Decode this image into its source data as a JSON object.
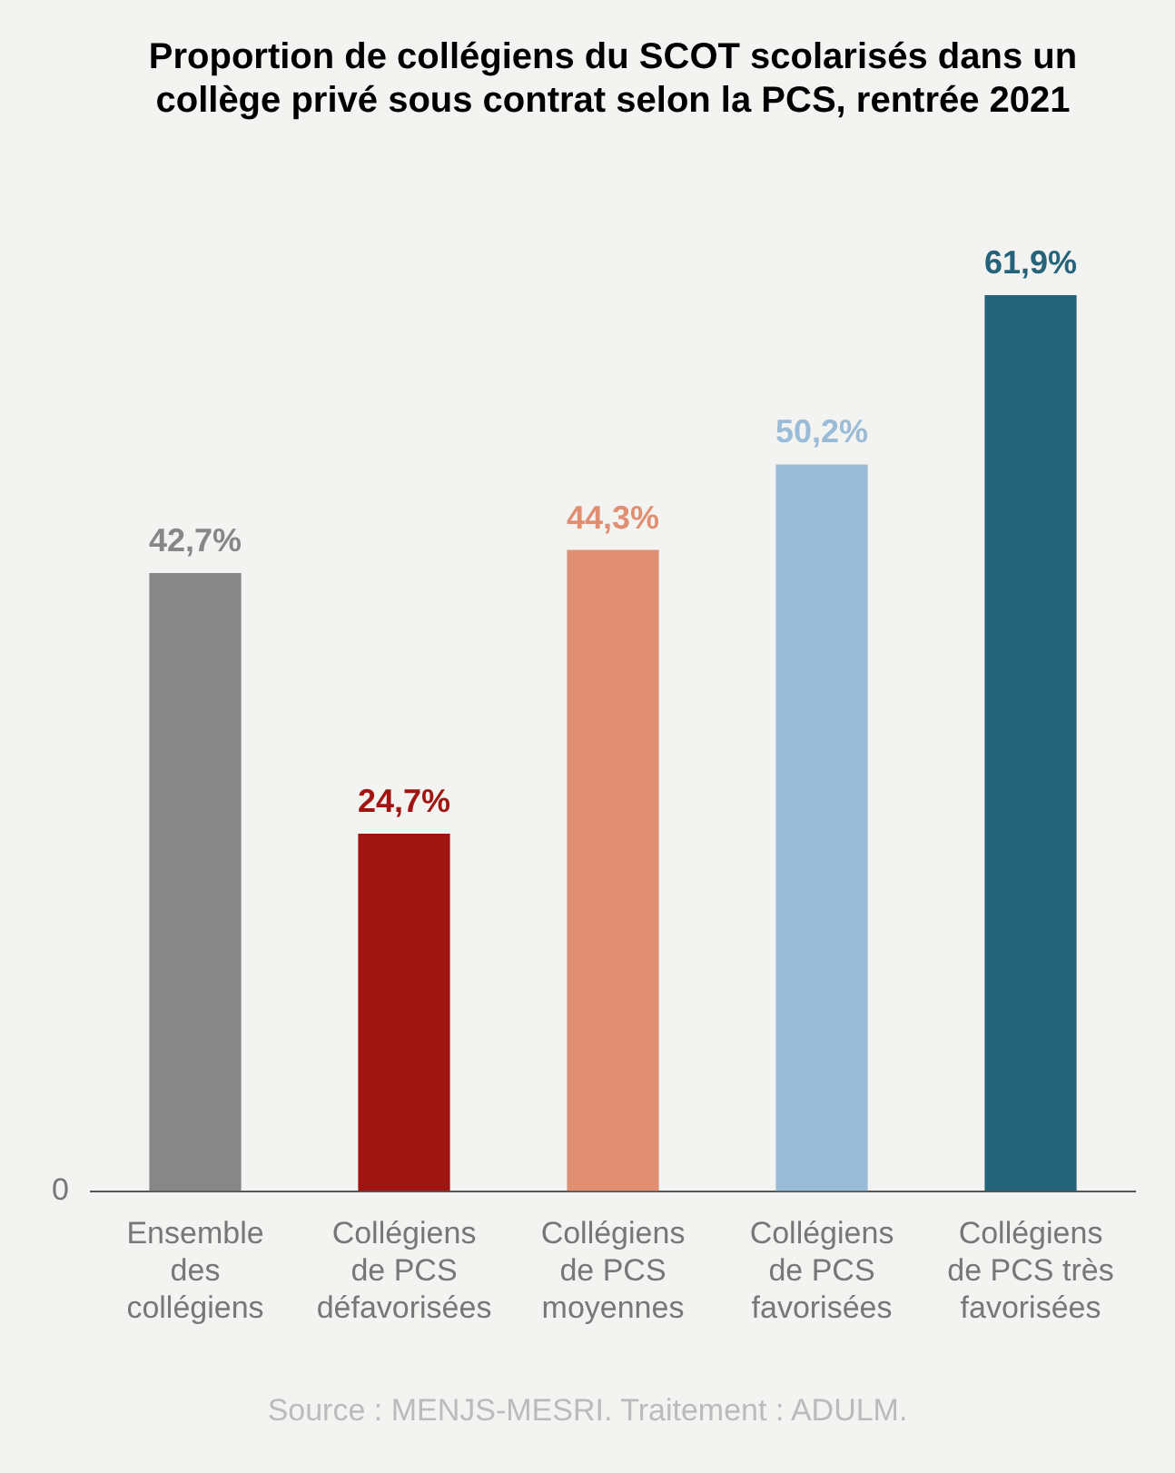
{
  "chart_data": {
    "type": "bar",
    "title": "Proportion de collégiens du SCOT scolarisés dans un collège privé sous contrat selon la PCS, rentrée 2021",
    "categories": [
      "Ensemble des collégiens",
      "Collégiens de PCS défavorisées",
      "Collégiens de PCS moyennes",
      "Collégiens de PCS favorisées",
      "Collégiens de PCS très favorisées"
    ],
    "values": [
      42.7,
      24.7,
      44.3,
      50.2,
      61.9
    ],
    "colors": [
      "#878787",
      "#a01511",
      "#e08f73",
      "#9bbcd8",
      "#25637a"
    ],
    "value_labels": [
      "42,7%",
      "24,7%",
      "44,3%",
      "50,2%",
      "61,9%"
    ],
    "grid": false,
    "legend": false,
    "annotations": [
      "0",
      "Source : MENJS-MESRI. Traitement : ADULM."
    ]
  }
}
